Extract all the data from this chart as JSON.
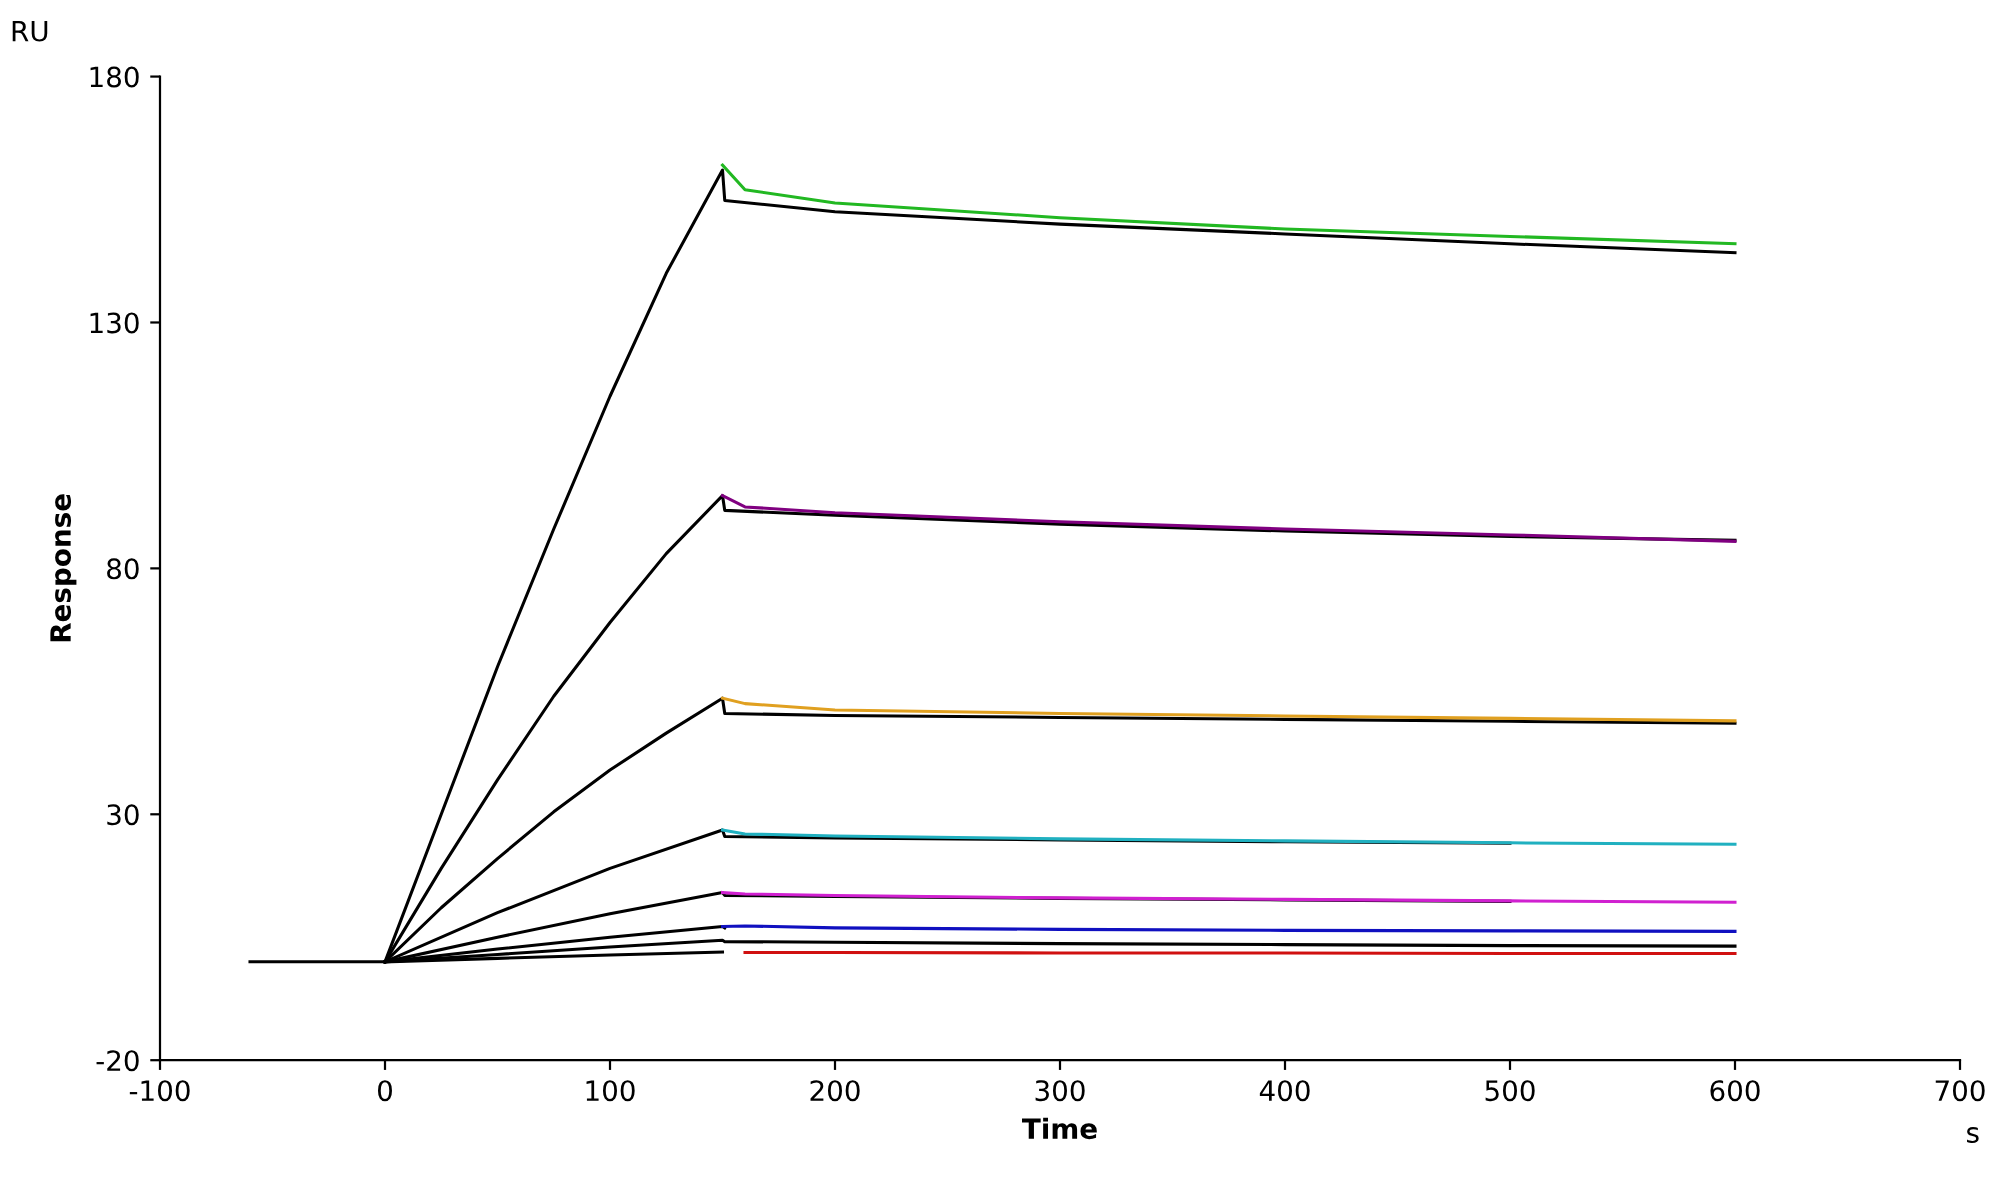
{
  "chart_data": {
    "type": "line",
    "xlabel": "Time",
    "ylabel": "Response",
    "annotations": [
      "RU",
      "s"
    ],
    "xlim": [
      -100,
      700
    ],
    "xticks": [
      -100,
      0,
      100,
      200,
      300,
      400,
      500,
      600,
      700
    ],
    "ylim": [
      -20,
      180
    ],
    "yticks": [
      -20,
      30,
      80,
      130,
      180
    ],
    "grid": false,
    "legend": false,
    "marker": "none",
    "line_style": "solid",
    "series": [
      {
        "color": "#22b822",
        "x": [
          150,
          160,
          200,
          300,
          400,
          500,
          600
        ],
        "values": [
          162,
          157,
          154.3,
          151.3,
          149,
          147.5,
          146
        ]
      },
      {
        "color": "#000000",
        "x": [
          -60,
          0,
          25,
          50,
          75,
          100,
          125,
          150,
          151,
          200,
          300,
          400,
          500,
          600
        ],
        "values": [
          0,
          0,
          30,
          60,
          88,
          115,
          140,
          161,
          154.8,
          152.5,
          150,
          148,
          146,
          144.2
        ]
      },
      {
        "color": "#800080",
        "x": [
          150,
          160,
          200,
          300,
          400,
          500,
          600
        ],
        "values": [
          94.8,
          92.5,
          91.3,
          89.5,
          88,
          86.8,
          85.5
        ]
      },
      {
        "color": "#000000",
        "x": [
          0,
          25,
          50,
          75,
          100,
          125,
          150,
          151,
          200,
          300,
          400,
          500,
          600
        ],
        "values": [
          0,
          19,
          37,
          54,
          69,
          83,
          94.8,
          91.8,
          90.8,
          89,
          87.6,
          86.5,
          85.7
        ]
      },
      {
        "color": "#e0a020",
        "x": [
          150,
          160,
          200,
          300,
          400,
          500,
          600
        ],
        "values": [
          53.6,
          52.5,
          51.2,
          50.5,
          50,
          49.5,
          49
        ]
      },
      {
        "color": "#000000",
        "x": [
          0,
          25,
          50,
          75,
          100,
          125,
          150,
          151,
          200,
          300,
          400,
          500,
          600
        ],
        "values": [
          0,
          11,
          21,
          30.5,
          39,
          46.5,
          53.6,
          50.5,
          50.1,
          49.7,
          49.3,
          48.9,
          48.5
        ]
      },
      {
        "color": "#20b0c0",
        "x": [
          150,
          160,
          200,
          300,
          400,
          500,
          600
        ],
        "values": [
          26.8,
          26,
          25.6,
          25,
          24.6,
          24.2,
          23.9
        ]
      },
      {
        "color": "#000000",
        "x": [
          0,
          50,
          100,
          150,
          151,
          200,
          300,
          400,
          500
        ],
        "values": [
          0,
          10,
          19,
          26.8,
          25.5,
          25.2,
          24.8,
          24.4,
          24.1
        ]
      },
      {
        "color": "#d020d0",
        "x": [
          150,
          160,
          200,
          300,
          400,
          500,
          600
        ],
        "values": [
          14.1,
          13.8,
          13.5,
          13,
          12.7,
          12.4,
          12.1
        ]
      },
      {
        "color": "#000000",
        "x": [
          0,
          50,
          100,
          150,
          151,
          200,
          300,
          400,
          500
        ],
        "values": [
          0,
          5,
          9.8,
          14.1,
          13.5,
          13.3,
          12.9,
          12.6,
          12.3
        ]
      },
      {
        "color": "#1010c0",
        "x": [
          150,
          160,
          200,
          300,
          400,
          500,
          600
        ],
        "values": [
          7.2,
          7.3,
          6.9,
          6.6,
          6.4,
          6.3,
          6.2
        ]
      },
      {
        "color": "#000000",
        "x": [
          0,
          50,
          100,
          150,
          151
        ],
        "values": [
          0,
          2.6,
          5,
          7.2,
          6.9
        ]
      },
      {
        "color": "#000000",
        "x": [
          0,
          50,
          100,
          150,
          151,
          200,
          300,
          400,
          500,
          600
        ],
        "values": [
          0,
          1.5,
          3,
          4.4,
          4.1,
          4,
          3.7,
          3.5,
          3.3,
          3.2
        ]
      },
      {
        "color": "#d01010",
        "x": [
          160,
          200,
          300,
          400,
          500,
          600
        ],
        "values": [
          1.9,
          1.9,
          1.8,
          1.8,
          1.7,
          1.7
        ]
      },
      {
        "color": "#000000",
        "x": [
          0,
          50,
          100,
          150
        ],
        "values": [
          0,
          0.7,
          1.4,
          2
        ]
      }
    ]
  }
}
